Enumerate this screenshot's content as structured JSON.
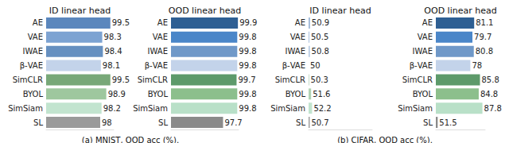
{
  "captions": [
    "(a) MNIST, OOD acc (%).",
    "(b) CIFAR, OOD acc (%)."
  ],
  "chart_data": [
    {
      "type": "bar",
      "orientation": "horizontal",
      "title": "ID linear head",
      "categories": [
        "AE",
        "VAE",
        "IWAE",
        "β-VAE",
        "SimCLR",
        "BYOL",
        "SimSiam",
        "SL"
      ],
      "values": [
        99.5,
        98.3,
        98.4,
        98.1,
        99.5,
        98.9,
        98.2,
        98
      ],
      "colors": [
        "#5b87bd",
        "#7da3d2",
        "#6690c0",
        "#c3d3ea",
        "#78a878",
        "#9ec79e",
        "#c2e4cf",
        "#9a9a9a"
      ],
      "xlim": [
        90,
        100
      ],
      "data_labels": true,
      "tick_labels": "y",
      "grid": false
    },
    {
      "type": "bar",
      "orientation": "horizontal",
      "title": "OOD linear head",
      "categories": [
        "AE",
        "VAE",
        "IWAE",
        "β-VAE",
        "SimCLR",
        "BYOL",
        "SimSiam",
        "SL"
      ],
      "values": [
        99.9,
        99.8,
        99.8,
        99.8,
        99.7,
        99.8,
        99.8,
        97.7
      ],
      "colors": [
        "#2e5f93",
        "#4a86c8",
        "#6f98c8",
        "#c3d3ea",
        "#5d9a6a",
        "#8cbf8c",
        "#b9e0c8",
        "#8a8a8a"
      ],
      "xlim": [
        90,
        100
      ],
      "data_labels": true,
      "tick_labels": "y",
      "grid": false
    },
    {
      "type": "bar",
      "orientation": "horizontal",
      "title": "ID linear head",
      "categories": [
        "AE",
        "VAE",
        "IWAE",
        "β-VAE",
        "SimCLR",
        "BYOL",
        "SimSiam",
        "SL"
      ],
      "values": [
        50.9,
        50.5,
        50.8,
        50,
        50.3,
        51.6,
        52.2,
        50.7
      ],
      "colors": [
        "#9cb6d6",
        "#a9c1de",
        "#b3c8e2",
        "#c9d7ea",
        "#9fc4a6",
        "#b0d3b5",
        "#c2e4cf",
        "#9a9a9a"
      ],
      "xlim": [
        50,
        90
      ],
      "data_labels": true,
      "tick_labels": "y",
      "grid": false
    },
    {
      "type": "bar",
      "orientation": "horizontal",
      "title": "OOD linear head",
      "categories": [
        "AE",
        "VAE",
        "IWAE",
        "β-VAE",
        "SimCLR",
        "BYOL",
        "SimSiam",
        "SL"
      ],
      "values": [
        81.1,
        79.7,
        80.8,
        78,
        85.8,
        84.8,
        87.8,
        51.5
      ],
      "colors": [
        "#2e5f93",
        "#4a86c8",
        "#6f98c8",
        "#c3d3ea",
        "#5d9a6a",
        "#8cbf8c",
        "#b9e0c8",
        "#8a8a8a"
      ],
      "xlim": [
        50,
        90
      ],
      "data_labels": true,
      "tick_labels": "y",
      "grid": false
    }
  ]
}
